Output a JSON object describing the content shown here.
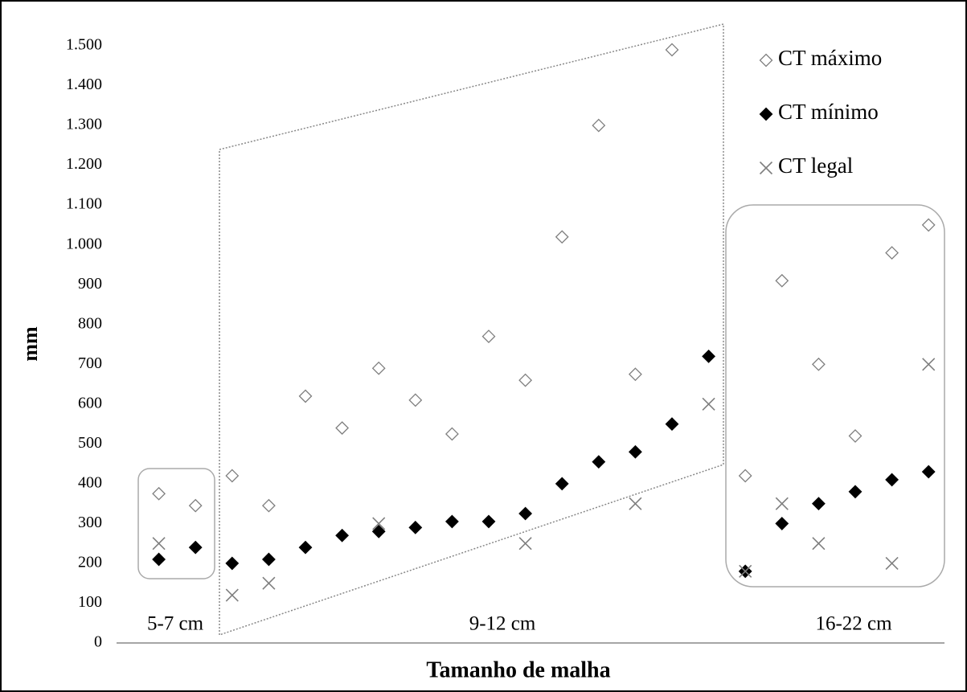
{
  "chart_data": {
    "type": "scatter",
    "categories": [
      null,
      null,
      null,
      null,
      null,
      null,
      null,
      null,
      null,
      null,
      null,
      null,
      null,
      null,
      null,
      null,
      null,
      null,
      null,
      null,
      null,
      null
    ],
    "series": [
      {
        "name": "CT máximo",
        "color": "#7f7f7f",
        "marker": "diamond-open",
        "values": [
          375,
          345,
          420,
          345,
          620,
          540,
          690,
          610,
          525,
          770,
          660,
          1020,
          1300,
          675,
          1490,
          null,
          420,
          910,
          700,
          520,
          980,
          1050
        ]
      },
      {
        "name": "CT mínimo",
        "color": "#000000",
        "marker": "diamond-filled",
        "values": [
          210,
          240,
          200,
          210,
          240,
          270,
          280,
          290,
          305,
          305,
          325,
          400,
          455,
          480,
          550,
          720,
          180,
          300,
          350,
          380,
          410,
          430
        ]
      },
      {
        "name": "CT legal",
        "color": "#7f7f7f",
        "marker": "cross",
        "values": [
          250,
          null,
          120,
          150,
          null,
          null,
          300,
          null,
          null,
          null,
          250,
          null,
          null,
          350,
          null,
          600,
          180,
          350,
          250,
          null,
          200,
          700
        ]
      }
    ],
    "y_label": "mm",
    "x_label": "Tamanho de malha",
    "annotations": [
      "5-7 cm",
      "9-12 cm",
      "16-22 cm"
    ],
    "ylim": [
      0,
      1500
    ],
    "yticks": [
      0,
      100,
      200,
      300,
      400,
      500,
      600,
      700,
      800,
      900,
      {
        "value": 1000,
        "label": "1.000"
      },
      {
        "value": 1100,
        "label": "1.100"
      },
      {
        "value": 1200,
        "label": "1.200"
      },
      {
        "value": 1300,
        "label": "1.300"
      },
      {
        "value": 1400,
        "label": "1.400"
      },
      {
        "value": 1500,
        "label": "1.500"
      }
    ],
    "grid": false,
    "legend": "top-right"
  }
}
